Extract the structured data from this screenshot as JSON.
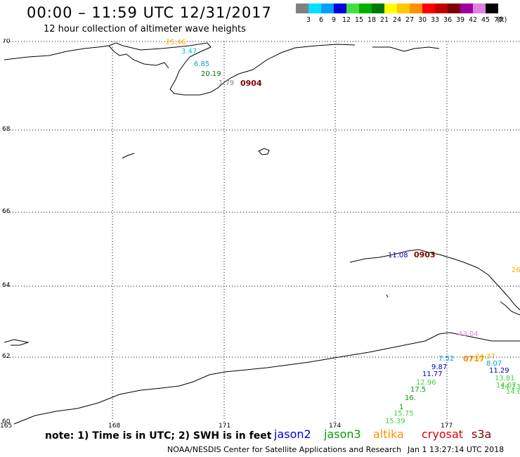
{
  "header": {
    "title": "00:00 – 11:59 UTC 12/31/2017",
    "subtitle": "12 hour collection of altimeter wave heights"
  },
  "legend": {
    "unit": "(ft)",
    "bins": [
      {
        "label": "3",
        "color": "#808080"
      },
      {
        "label": "6",
        "color": "#00e0ff"
      },
      {
        "label": "9",
        "color": "#00a0ff"
      },
      {
        "label": "12",
        "color": "#0000e0"
      },
      {
        "label": "15",
        "color": "#40e040"
      },
      {
        "label": "18",
        "color": "#00b000"
      },
      {
        "label": "21",
        "color": "#007800"
      },
      {
        "label": "24",
        "color": "#ffff00"
      },
      {
        "label": "27",
        "color": "#ffc800"
      },
      {
        "label": "30",
        "color": "#ff9000"
      },
      {
        "label": "33",
        "color": "#ff0000"
      },
      {
        "label": "36",
        "color": "#c00000"
      },
      {
        "label": "39",
        "color": "#800000"
      },
      {
        "label": "42",
        "color": "#a000a0"
      },
      {
        "label": "45",
        "color": "#e080e0"
      },
      {
        "label": "70",
        "color": "#000000"
      }
    ]
  },
  "map": {
    "lat_labels": [
      "70",
      "68",
      "66",
      "64",
      "62",
      "60"
    ],
    "lon_labels": [
      "165",
      "168",
      "171",
      "174",
      "177"
    ],
    "wave_labels": [
      {
        "text": "25.46",
        "color": "#ffb000"
      },
      {
        "text": "3.47",
        "color": "#00c8e0"
      },
      {
        "text": "6.85",
        "color": "#00a0d8"
      },
      {
        "text": "20.19",
        "color": "#007800"
      },
      {
        "text": "1.79",
        "color": "#808080"
      },
      {
        "text": "11.08",
        "color": "#0000c0"
      },
      {
        "text": "26",
        "color": "#ffb000"
      },
      {
        "text": "43.04",
        "color": "#e080e0"
      },
      {
        "text": "24.37",
        "color": "#ffb000"
      },
      {
        "text": "7.52",
        "color": "#00a0d8"
      },
      {
        "text": "8.07",
        "color": "#00a0d8"
      },
      {
        "text": "9.87",
        "color": "#0000c0"
      },
      {
        "text": "11.77",
        "color": "#0000c0"
      },
      {
        "text": "11.29",
        "color": "#0000c0"
      },
      {
        "text": "13.81",
        "color": "#40d040"
      },
      {
        "text": "12.96",
        "color": "#40d040"
      },
      {
        "text": "14.07",
        "color": "#40d040"
      },
      {
        "text": "17.5",
        "color": "#00a000"
      },
      {
        "text": "14.23",
        "color": "#40d040"
      },
      {
        "text": "16.",
        "color": "#00a000"
      },
      {
        "text": "14.63",
        "color": "#40d040"
      },
      {
        "text": "1",
        "color": "#00a000"
      },
      {
        "text": "15.75",
        "color": "#40d040"
      },
      {
        "text": "15.39",
        "color": "#40d040"
      }
    ],
    "time_labels": [
      {
        "text": "0904",
        "color": "#800000"
      },
      {
        "text": "0903",
        "color": "#800000"
      },
      {
        "text": "0717",
        "color": "#ff9000"
      }
    ]
  },
  "footer": {
    "note": "note: 1) Time is in UTC; 2) SWH is in feet",
    "satellites": [
      {
        "name": "jason2",
        "color": "#0000e0"
      },
      {
        "name": "jason3",
        "color": "#00a000"
      },
      {
        "name": "altika",
        "color": "#ff9000"
      },
      {
        "name": "cryosat",
        "color": "#e00000"
      },
      {
        "name": "s3a",
        "color": "#800000"
      }
    ],
    "credit": "NOAA/NESDIS Center for Satellite Applications and Research",
    "timestamp": "Jan  1 13:27:14 UTC 2018"
  }
}
